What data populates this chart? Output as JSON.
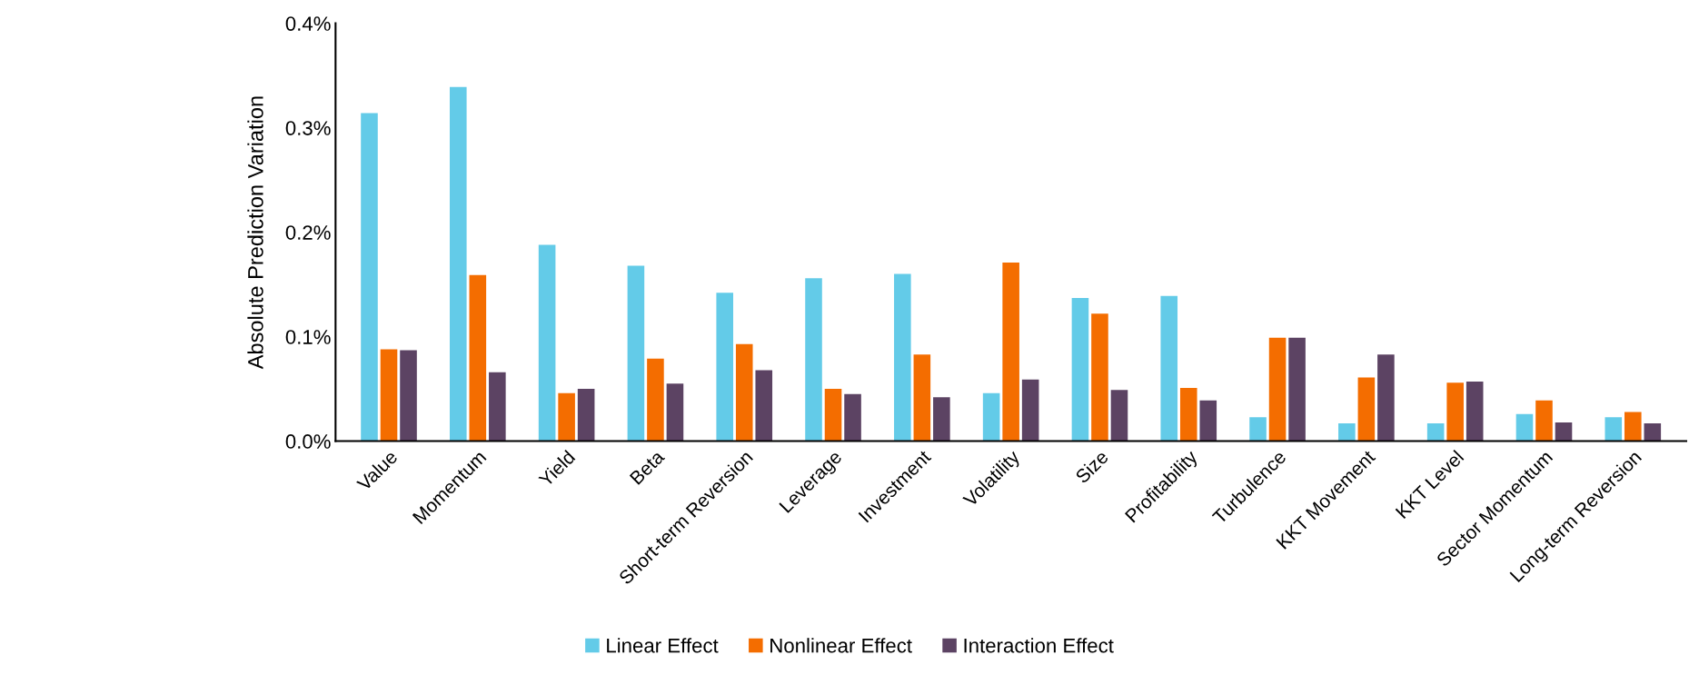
{
  "chart_data": {
    "type": "bar",
    "ylabel": "Absolute Prediction Variation",
    "categories": [
      "Value",
      "Momentum",
      "Yield",
      "Beta",
      "Short-term Reversion",
      "Leverage",
      "Investment",
      "Volatility",
      "Size",
      "Profitability",
      "Turbulence",
      "KKT Movement",
      "KKT Level",
      "Sector Momentum",
      "Long-term Reversion"
    ],
    "series": [
      {
        "name": "Linear Effect",
        "color": "#63cbe8",
        "values": [
          0.314,
          0.339,
          0.188,
          0.168,
          0.142,
          0.156,
          0.16,
          0.046,
          0.137,
          0.139,
          0.023,
          0.017,
          0.017,
          0.026,
          0.023
        ]
      },
      {
        "name": "Nonlinear Effect",
        "color": "#f46d00",
        "values": [
          0.088,
          0.159,
          0.046,
          0.079,
          0.093,
          0.05,
          0.083,
          0.171,
          0.122,
          0.051,
          0.099,
          0.061,
          0.056,
          0.039,
          0.028
        ]
      },
      {
        "name": "Interaction Effect",
        "color": "#5c4363",
        "values": [
          0.087,
          0.066,
          0.05,
          0.055,
          0.068,
          0.045,
          0.042,
          0.059,
          0.049,
          0.039,
          0.099,
          0.083,
          0.057,
          0.018,
          0.017
        ]
      }
    ],
    "ylim": [
      0,
      0.4
    ],
    "yticks": [
      {
        "value": 0,
        "label": "0.0%"
      },
      {
        "value": 0.1,
        "label": "0.1%"
      },
      {
        "value": 0.2,
        "label": "0.2%"
      },
      {
        "value": 0.3,
        "label": "0.3%"
      },
      {
        "value": 0.4,
        "label": "0.4%"
      }
    ],
    "grid": false,
    "legend": "bottom"
  }
}
